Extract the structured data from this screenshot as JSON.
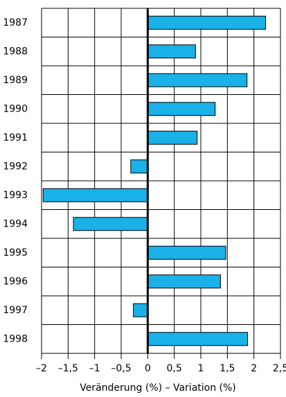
{
  "chart_data": {
    "type": "barh",
    "xlabel": "Veränderung (%) – Variation (%)",
    "categories": [
      "1987",
      "1988",
      "1989",
      "1990",
      "1991",
      "1992",
      "1993",
      "1994",
      "1995",
      "1996",
      "1997",
      "1998"
    ],
    "values": [
      2.22,
      0.9,
      1.87,
      1.27,
      0.93,
      -0.32,
      -1.97,
      -1.4,
      1.47,
      1.37,
      -0.27,
      1.88
    ],
    "color": "#1ab0e8",
    "xlim": [
      -2,
      2.5
    ],
    "xticks": [
      {
        "value": -2,
        "label": "–2"
      },
      {
        "value": -1.5,
        "label": "–1,5"
      },
      {
        "value": -1,
        "label": "–1"
      },
      {
        "value": -0.5,
        "label": "–0,5"
      },
      0,
      {
        "value": 0.5,
        "label": "0,5"
      },
      1,
      {
        "value": 1.5,
        "label": "1,5"
      },
      2,
      {
        "value": 2.5,
        "label": "2,5"
      }
    ],
    "grid": true
  }
}
